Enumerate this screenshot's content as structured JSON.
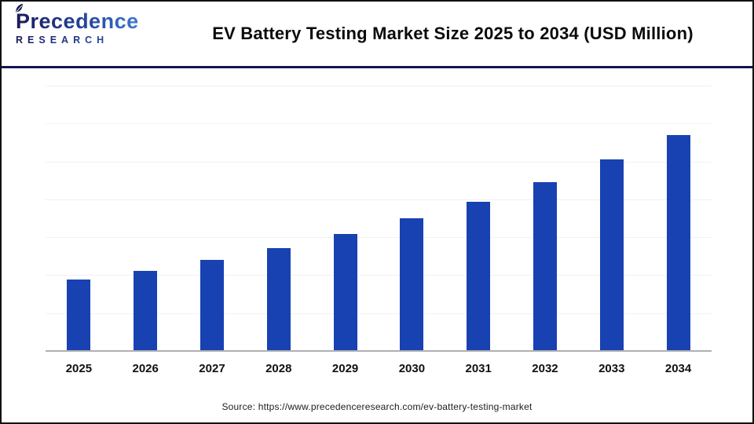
{
  "header": {
    "logo": {
      "name": "Precedence",
      "subtitle": "RESEARCH"
    },
    "title": "EV Battery Testing Market Size 2025 to 2034 (USD Million)"
  },
  "footer": {
    "source": "Source: https://www.precedenceresearch.com/ev-battery-testing-market"
  },
  "chart_data": {
    "type": "bar",
    "title": "EV Battery Testing Market Size 2025 to 2034 (USD Million)",
    "categories": [
      "2025",
      "2026",
      "2027",
      "2028",
      "2029",
      "2030",
      "2031",
      "2032",
      "2033",
      "2034"
    ],
    "values": [
      100,
      113,
      128,
      145,
      164,
      186,
      210,
      237,
      269,
      304
    ],
    "units": "USD Million",
    "values_note": "Y-axis has no tick labels and bars have no data labels; values estimated from bar heights, normalized so 2025 = 100 (approx. 13% year-over-year growth).",
    "xlabel": "",
    "ylabel": "",
    "ylim": [
      0,
      373
    ],
    "y_axis_labels_shown": false,
    "value_labels_shown": false,
    "legend": "none",
    "grid": "horizontal",
    "gridline_count": 7,
    "colors": {
      "bar": "#1841B2",
      "grid": "#F1F1EF",
      "axis": "#B0B0B3",
      "header_rule": "#14144E",
      "title_text": "#0B0B0B",
      "brand_navy": "#1A1A5C",
      "brand_blue": "#3B77D3"
    }
  }
}
